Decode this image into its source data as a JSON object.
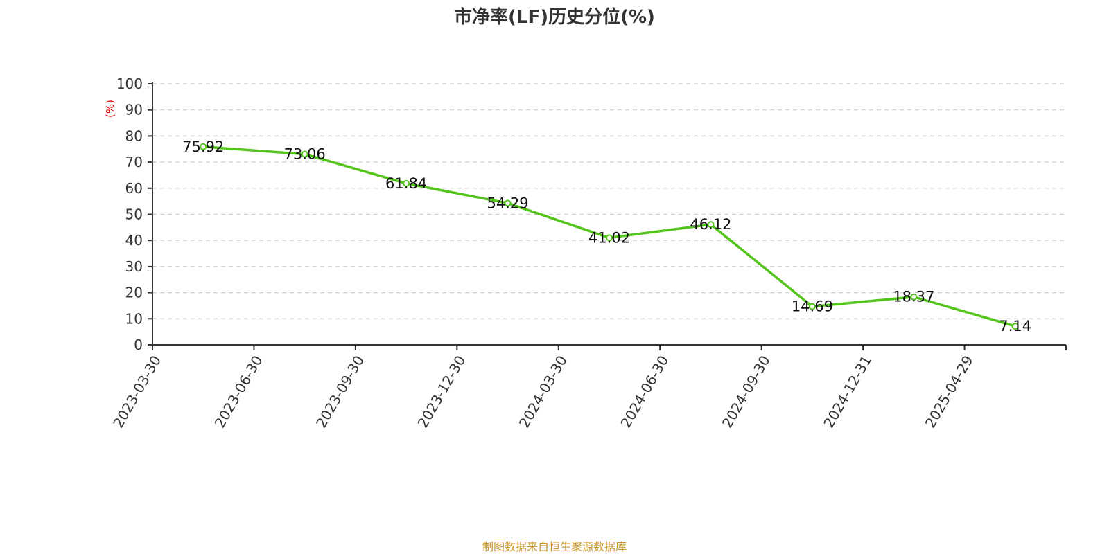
{
  "chart_data": {
    "type": "line",
    "title": "市净率(LF)历史分位(%)",
    "unit_label": "(%)",
    "categories": [
      "2023-03-30",
      "2023-06-30",
      "2023-09-30",
      "2023-12-30",
      "2024-03-30",
      "2024-06-30",
      "2024-09-30",
      "2024-12-31",
      "2025-04-29"
    ],
    "series": [
      {
        "values": [
          75.92,
          73.06,
          61.84,
          54.29,
          41.02,
          46.12,
          14.69,
          18.37,
          7.14
        ],
        "color": "#52c41a"
      }
    ],
    "data_labels": [
      "75.92",
      "73.06",
      "61.84",
      "54.29",
      "41.02",
      "46.12",
      "14.69",
      "18.37",
      "7.14"
    ],
    "yticks": [
      "0",
      "10",
      "20",
      "30",
      "40",
      "50",
      "60",
      "70",
      "80",
      "90",
      "100"
    ],
    "ylim": [
      0,
      100
    ],
    "grid": true,
    "legend": "none",
    "source": "制图数据来自恒生聚源数据库"
  }
}
